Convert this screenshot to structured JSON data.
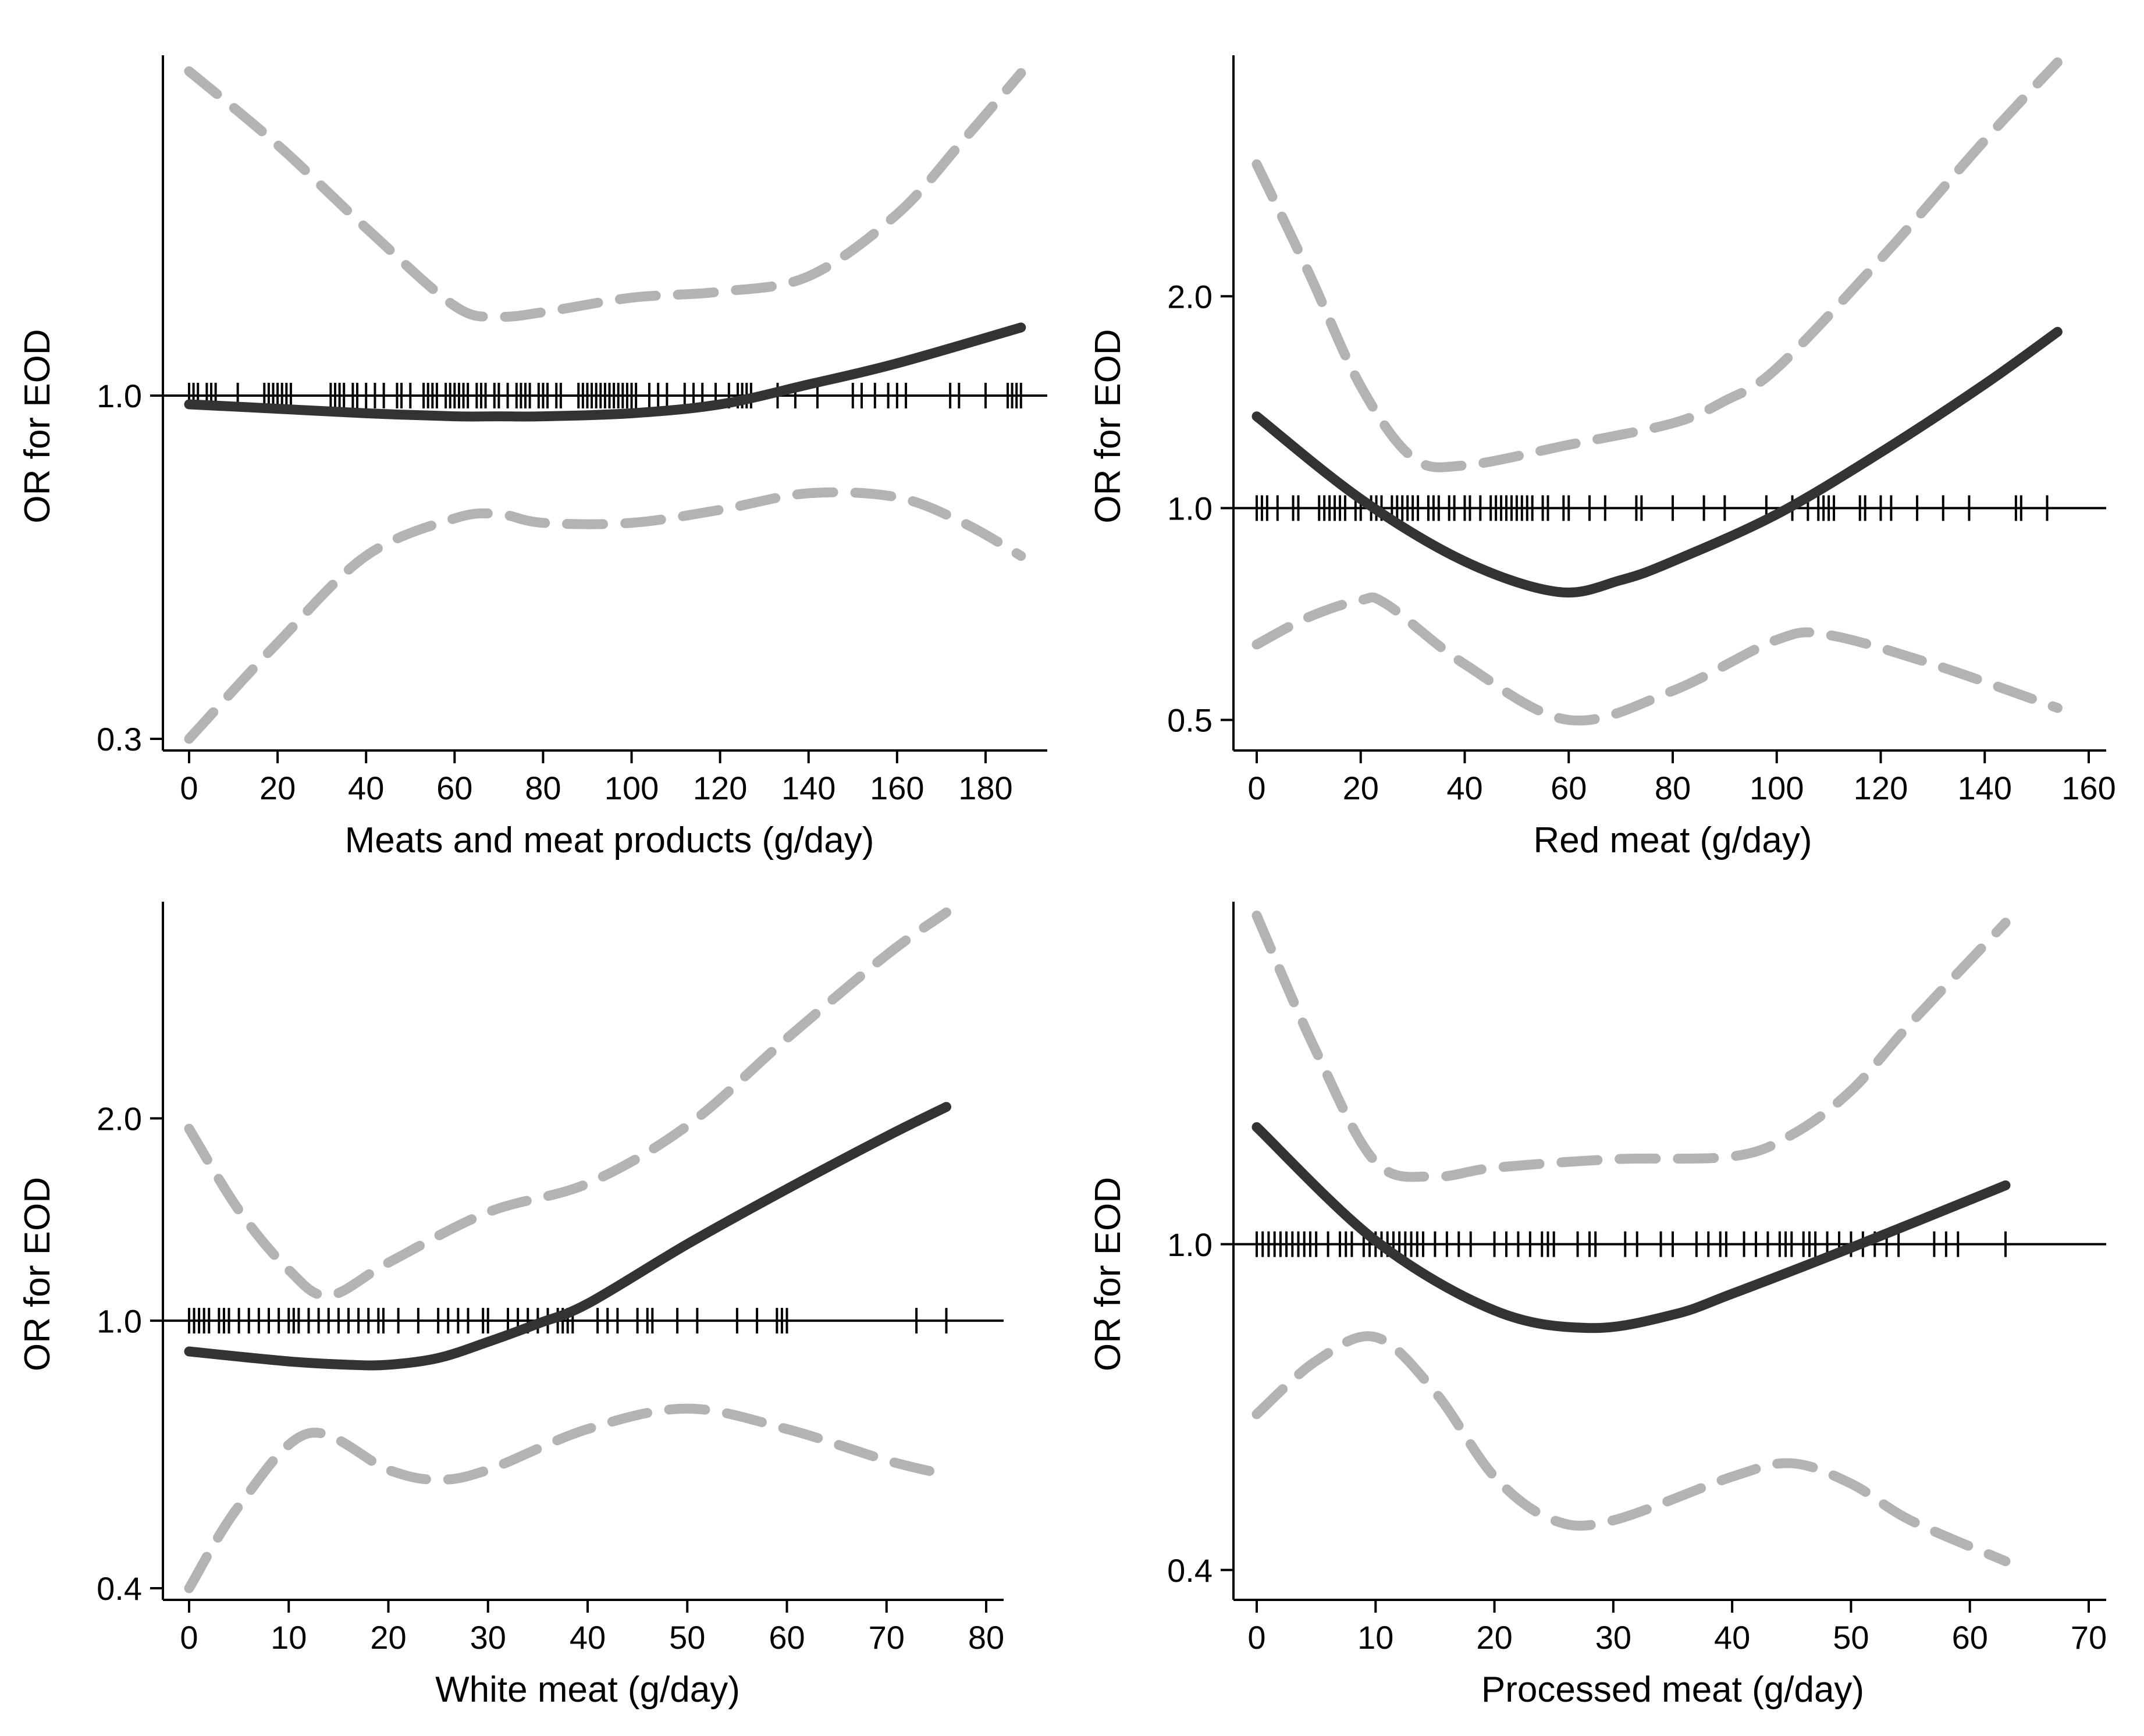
{
  "figure": {
    "colors": {
      "estimate": "#333333",
      "ci": "#b3b3b3",
      "axis": "#000000",
      "reference": "#000000",
      "background": "#ffffff"
    }
  },
  "chart_data": [
    {
      "type": "line",
      "title": "",
      "xlabel": "Meats and meat products (g/day)",
      "ylabel": "OR for EOD",
      "y_scale": "log",
      "xlim": [
        0,
        190
      ],
      "ylim": [
        0.3,
        3.3
      ],
      "xticks": [
        0,
        20,
        40,
        60,
        80,
        100,
        120,
        140,
        160,
        180
      ],
      "yticks": [
        0.3,
        1.0
      ],
      "ytick_labels": [
        "0.3",
        "1.0"
      ],
      "reference_line": 1.0,
      "series": [
        {
          "name": "OR estimate",
          "style": "solid",
          "x": [
            0,
            20,
            40,
            60,
            70,
            80,
            100,
            120,
            140,
            160,
            188
          ],
          "y": [
            0.97,
            0.955,
            0.94,
            0.93,
            0.93,
            0.93,
            0.94,
            0.97,
            1.04,
            1.12,
            1.27
          ]
        },
        {
          "name": "95% CI upper",
          "style": "dashed",
          "x": [
            0,
            20,
            40,
            60,
            70,
            80,
            100,
            120,
            140,
            160,
            175,
            188
          ],
          "y": [
            3.12,
            2.41,
            1.8,
            1.37,
            1.32,
            1.34,
            1.41,
            1.44,
            1.52,
            1.89,
            2.45,
            3.1
          ]
        },
        {
          "name": "95% CI lower",
          "style": "dashed",
          "x": [
            0,
            20,
            40,
            60,
            70,
            80,
            100,
            120,
            140,
            160,
            175,
            188
          ],
          "y": [
            0.3,
            0.42,
            0.57,
            0.65,
            0.66,
            0.64,
            0.64,
            0.67,
            0.71,
            0.7,
            0.64,
            0.57
          ]
        }
      ],
      "rug": [
        0,
        1,
        2,
        4,
        5,
        6,
        11,
        17,
        18,
        19,
        20,
        21,
        22,
        23,
        32,
        33,
        34,
        35,
        37,
        38,
        40,
        42,
        44,
        47,
        48,
        50,
        53,
        54,
        55,
        56,
        58,
        59,
        60,
        61,
        62,
        63,
        65,
        66,
        67,
        69,
        70,
        72,
        74,
        75,
        76,
        77,
        79,
        80,
        81,
        83,
        84,
        88,
        89,
        90,
        91,
        92,
        93,
        94,
        95,
        96,
        97,
        98,
        99,
        100,
        101,
        104,
        106,
        108,
        112,
        114,
        116,
        119,
        122,
        124,
        125,
        126,
        127,
        133,
        137,
        142,
        150,
        152,
        155,
        158,
        160,
        162,
        172,
        174,
        180,
        185,
        186,
        187,
        188
      ]
    },
    {
      "type": "line",
      "title": "",
      "xlabel": "Red meat (g/day)",
      "ylabel": "OR for EOD",
      "y_scale": "log",
      "xlim": [
        0,
        160
      ],
      "ylim": [
        0.47,
        4.4
      ],
      "xticks": [
        0,
        20,
        40,
        60,
        80,
        100,
        120,
        140,
        160
      ],
      "yticks": [
        0.5,
        1.0,
        2.0
      ],
      "ytick_labels": [
        "0.5",
        "1.0",
        "2.0"
      ],
      "reference_line": 1.0,
      "series": [
        {
          "name": "OR estimate",
          "style": "solid",
          "x": [
            0,
            20,
            40,
            58,
            70,
            80,
            100,
            120,
            140,
            154
          ],
          "y": [
            1.35,
            1.03,
            0.84,
            0.76,
            0.79,
            0.84,
            0.98,
            1.2,
            1.5,
            1.78
          ]
        },
        {
          "name": "95% CI upper",
          "style": "dashed",
          "x": [
            0,
            10,
            20,
            30,
            40,
            60,
            80,
            90,
            100,
            120,
            140,
            154
          ],
          "y": [
            3.08,
            2.16,
            1.49,
            1.18,
            1.15,
            1.23,
            1.32,
            1.42,
            1.58,
            2.26,
            3.33,
            4.3
          ]
        },
        {
          "name": "95% CI lower",
          "style": "dashed",
          "x": [
            0,
            10,
            20,
            25,
            40,
            60,
            80,
            100,
            110,
            130,
            154
          ],
          "y": [
            0.64,
            0.7,
            0.74,
            0.73,
            0.6,
            0.5,
            0.55,
            0.65,
            0.66,
            0.6,
            0.52
          ]
        }
      ],
      "rug": [
        0,
        1,
        2,
        4,
        7,
        8,
        12,
        13,
        14,
        15,
        16,
        17,
        19,
        20,
        22,
        23,
        24,
        26,
        27,
        28,
        29,
        30,
        31,
        33,
        34,
        35,
        37,
        38,
        40,
        41,
        43,
        45,
        46,
        47,
        48,
        49,
        50,
        51,
        52,
        53,
        55,
        56,
        59,
        60,
        64,
        67,
        73,
        74,
        80,
        86,
        90,
        98,
        103,
        106,
        108,
        109,
        110,
        111,
        116,
        117,
        120,
        122,
        127,
        132,
        137,
        146,
        147,
        152
      ]
    },
    {
      "type": "line",
      "title": "",
      "xlabel": "White meat (g/day)",
      "ylabel": "OR for EOD",
      "y_scale": "log",
      "xlim": [
        0,
        80
      ],
      "ylim": [
        0.4,
        4.2
      ],
      "xticks": [
        0,
        10,
        20,
        30,
        40,
        50,
        60,
        70,
        80
      ],
      "yticks": [
        0.4,
        1.0,
        2.0
      ],
      "ytick_labels": [
        "0.4",
        "1.0",
        "2.0"
      ],
      "reference_line": 1.0,
      "series": [
        {
          "name": "OR estimate",
          "style": "solid",
          "x": [
            0,
            10,
            16,
            20,
            25,
            30,
            35,
            40,
            50,
            60,
            70,
            76
          ],
          "y": [
            0.9,
            0.87,
            0.86,
            0.86,
            0.88,
            0.93,
            0.99,
            1.06,
            1.3,
            1.57,
            1.88,
            2.08
          ]
        },
        {
          "name": "95% CI upper",
          "style": "dashed",
          "x": [
            0,
            5,
            10,
            14,
            20,
            30,
            40,
            50,
            60,
            70,
            76
          ],
          "y": [
            1.93,
            1.46,
            1.19,
            1.09,
            1.22,
            1.45,
            1.6,
            1.95,
            2.63,
            3.5,
            4.05
          ]
        },
        {
          "name": "95% CI lower",
          "style": "dashed",
          "x": [
            0,
            5,
            12,
            20,
            25,
            30,
            40,
            50,
            60,
            70,
            76
          ],
          "y": [
            0.4,
            0.53,
            0.68,
            0.6,
            0.58,
            0.6,
            0.69,
            0.74,
            0.69,
            0.62,
            0.59
          ]
        }
      ],
      "rug": [
        0,
        0.5,
        1,
        1.5,
        2,
        3,
        3.5,
        4,
        5,
        6,
        7,
        8,
        9,
        10,
        10.5,
        11,
        12,
        13,
        14,
        15,
        16,
        17,
        18,
        19,
        19.5,
        21,
        23,
        25,
        26,
        27,
        28,
        29.5,
        30,
        32,
        33,
        34,
        35,
        36,
        37,
        37.5,
        38,
        38.5,
        41,
        42,
        43,
        45,
        46,
        46.5,
        49,
        51,
        55,
        57,
        59,
        59.5,
        60,
        73,
        76
      ]
    },
    {
      "type": "line",
      "title": "",
      "xlabel": "Processed meat (g/day)",
      "ylabel": "OR for EOD",
      "y_scale": "log",
      "xlim": [
        0,
        70
      ],
      "ylim": [
        0.38,
        2.62
      ],
      "xticks": [
        0,
        10,
        20,
        30,
        40,
        50,
        60,
        70
      ],
      "yticks": [
        0.4,
        1.0
      ],
      "ytick_labels": [
        "0.4",
        "1.0"
      ],
      "reference_line": 1.0,
      "series": [
        {
          "name": "OR estimate",
          "style": "solid",
          "x": [
            0,
            10,
            20,
            28,
            35,
            40,
            50,
            63
          ],
          "y": [
            1.39,
            1.01,
            0.83,
            0.79,
            0.82,
            0.87,
            0.99,
            1.18
          ]
        },
        {
          "name": "95% CI upper",
          "style": "dashed",
          "x": [
            0,
            5,
            10,
            15,
            20,
            30,
            40,
            45,
            50,
            55,
            63
          ],
          "y": [
            2.52,
            1.72,
            1.26,
            1.21,
            1.24,
            1.27,
            1.28,
            1.36,
            1.54,
            1.86,
            2.47
          ]
        },
        {
          "name": "95% CI lower",
          "style": "dashed",
          "x": [
            0,
            5,
            10,
            15,
            20,
            25,
            30,
            40,
            45,
            50,
            55,
            63
          ],
          "y": [
            0.62,
            0.72,
            0.77,
            0.66,
            0.52,
            0.46,
            0.46,
            0.52,
            0.54,
            0.51,
            0.46,
            0.41
          ]
        }
      ],
      "rug": [
        0,
        0.5,
        1,
        1.5,
        2,
        2.5,
        3,
        3.5,
        4,
        4.5,
        5,
        6,
        7,
        7.5,
        8,
        9,
        9.5,
        10,
        10.5,
        11,
        11.5,
        12,
        12.5,
        13,
        13.5,
        14,
        15,
        16,
        17,
        18,
        20,
        21,
        22,
        23,
        24,
        24.5,
        25,
        27,
        28,
        28.5,
        31,
        32,
        34,
        35,
        37,
        38,
        39,
        39.5,
        41,
        42,
        43,
        44,
        44.5,
        45,
        46,
        46.5,
        47,
        48,
        49,
        50,
        51,
        52,
        53,
        54,
        57,
        58,
        59,
        63
      ]
    }
  ]
}
